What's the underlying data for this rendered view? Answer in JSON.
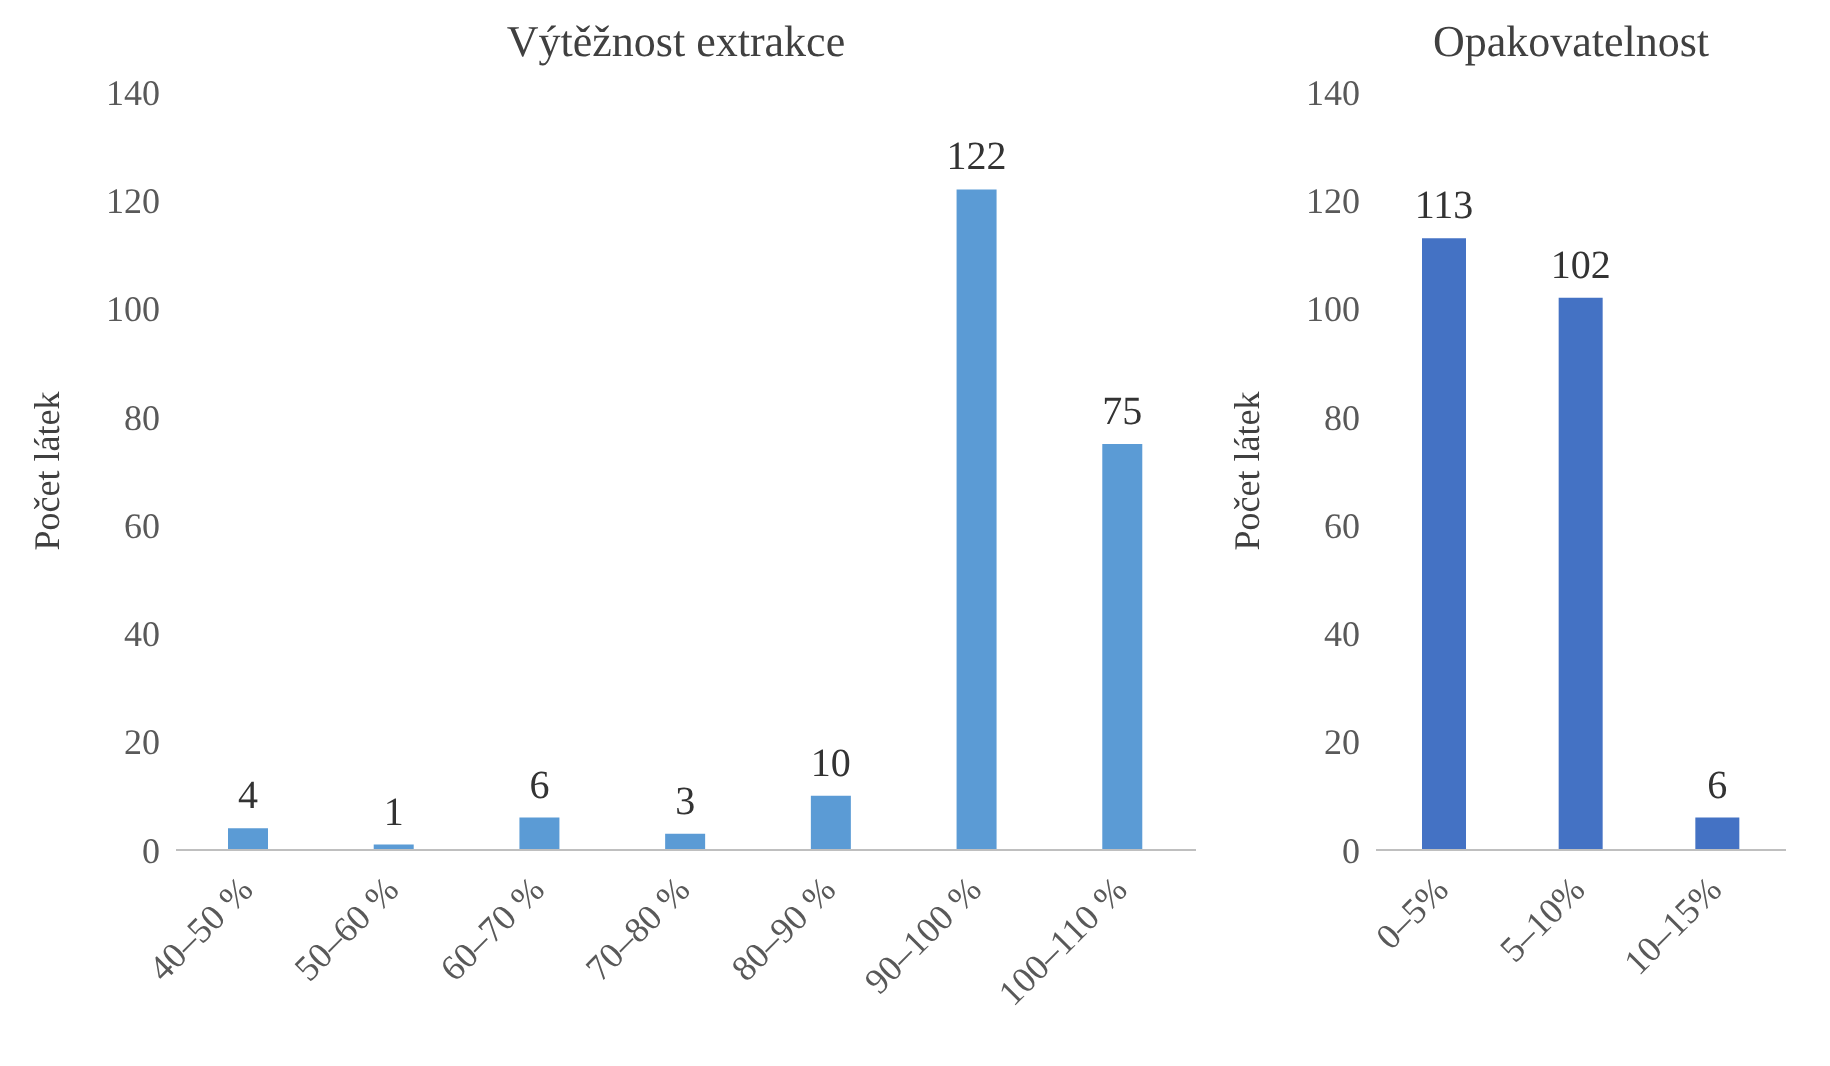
{
  "chart_data": [
    {
      "type": "bar",
      "title": "Výtěžnost extrakce",
      "ylabel": "Počet látek",
      "categories": [
        "40–50 %",
        "50–60 %",
        "60–70 %",
        "70–80 %",
        "80–90 %",
        "90–100 %",
        "100–110 %"
      ],
      "values": [
        4,
        1,
        6,
        3,
        10,
        122,
        75
      ],
      "color": "#5b9bd5",
      "ylim": [
        0,
        140
      ],
      "yticks": [
        0,
        20,
        40,
        60,
        80,
        100,
        120,
        140
      ],
      "data_labels": true,
      "grid": false,
      "legend": false
    },
    {
      "type": "bar",
      "title": "Opakovatelnost",
      "ylabel": "Počet látek",
      "categories": [
        "0–5%",
        "5–10%",
        "10–15%"
      ],
      "values": [
        113,
        102,
        6
      ],
      "color": "#4472c4",
      "ylim": [
        0,
        140
      ],
      "yticks": [
        0,
        20,
        40,
        60,
        80,
        100,
        120,
        140
      ],
      "data_labels": true,
      "grid": false,
      "legend": false
    }
  ]
}
